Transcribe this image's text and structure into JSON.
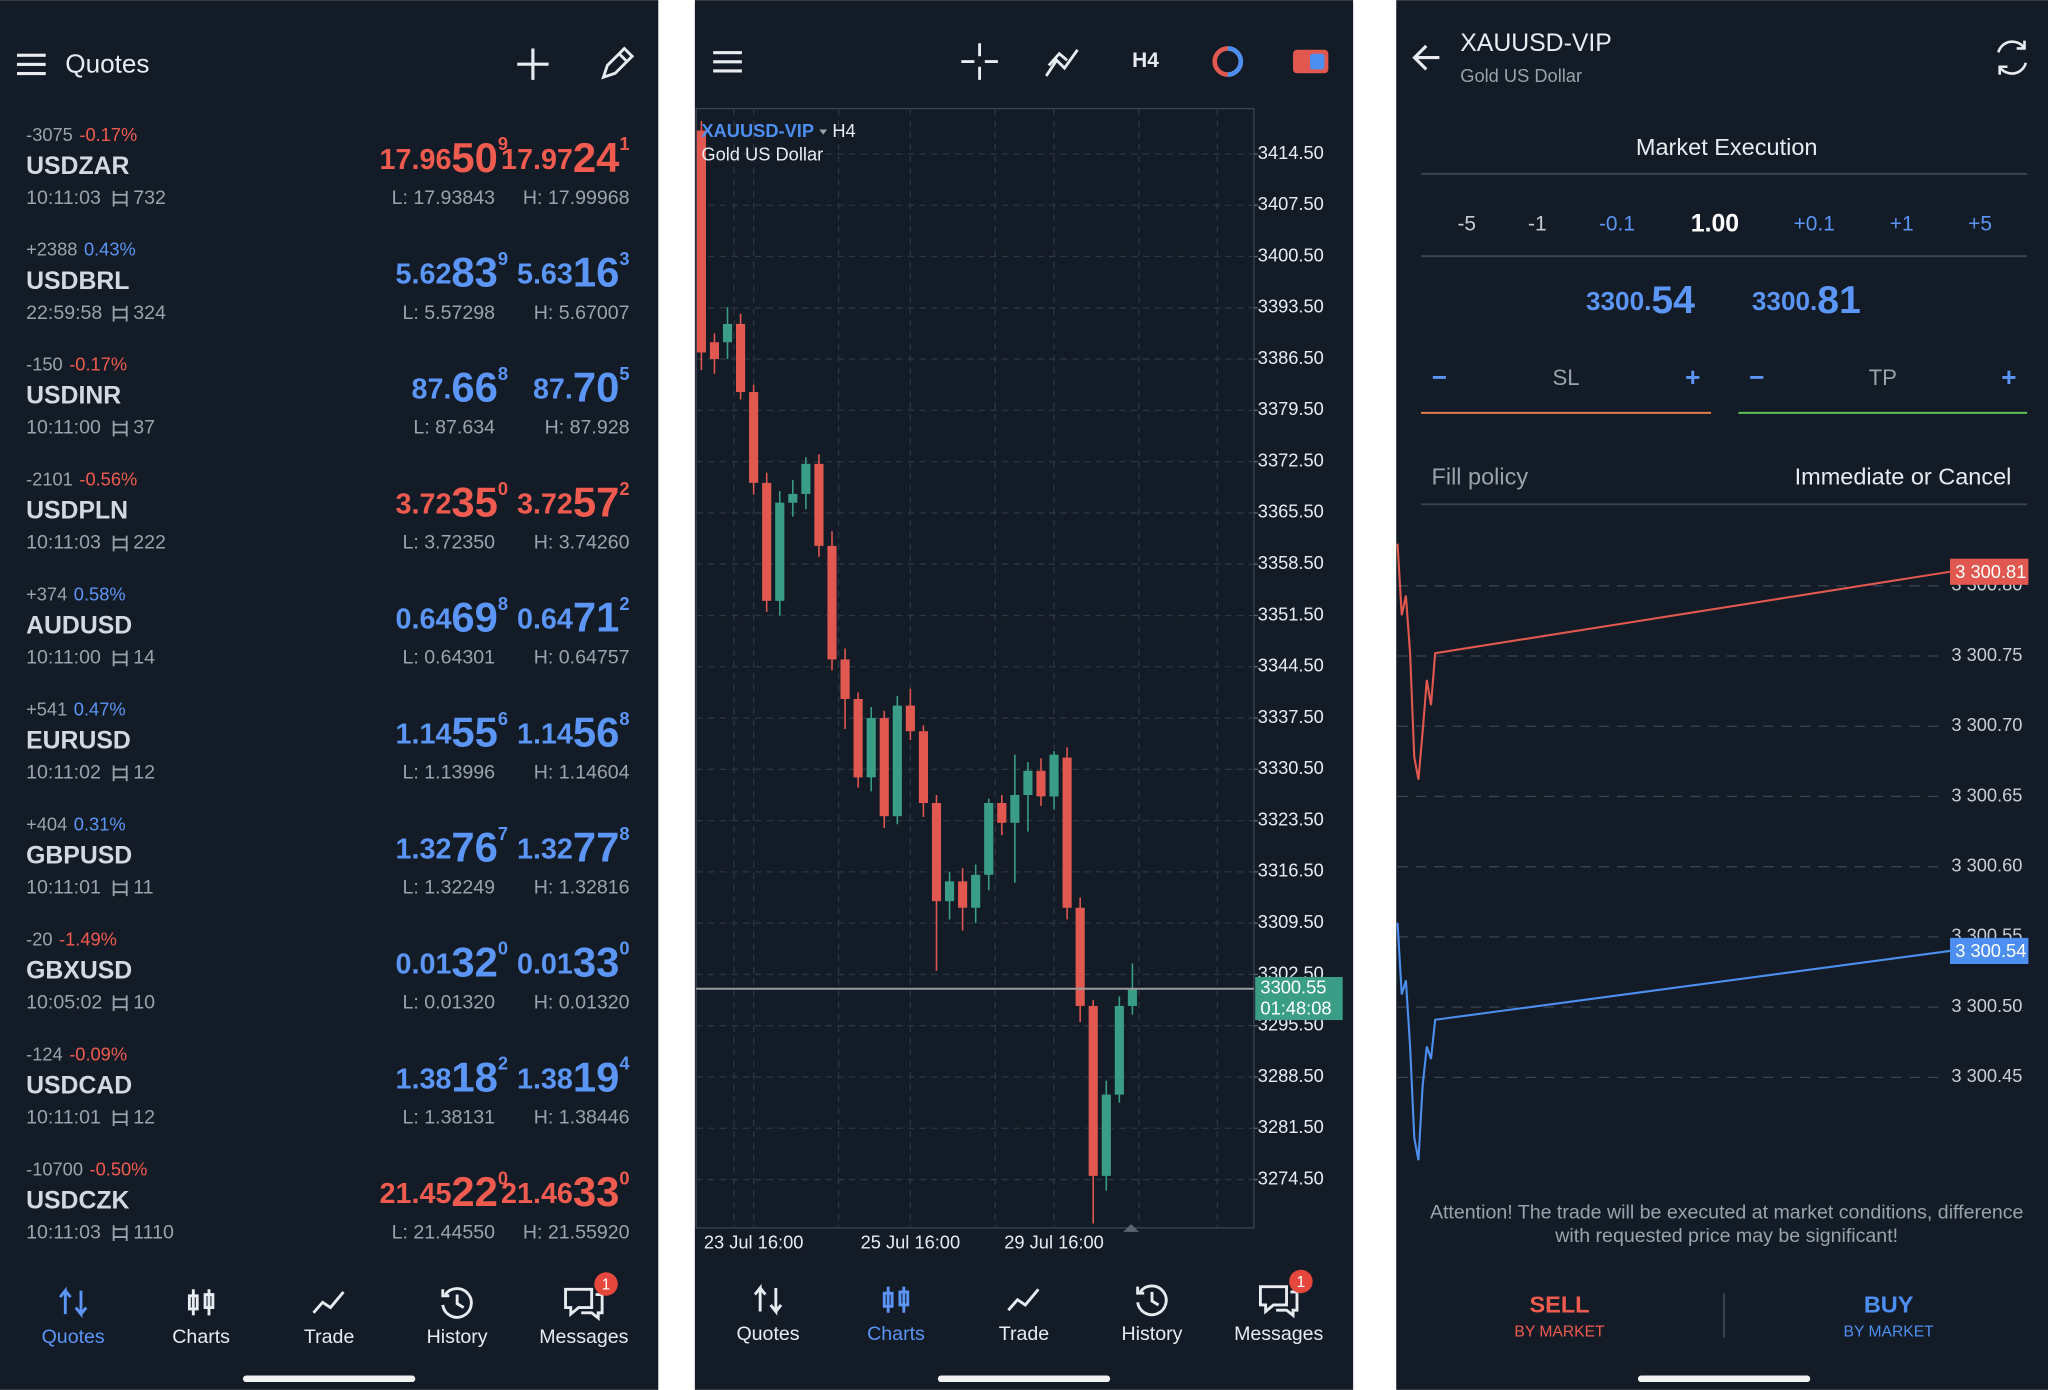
{
  "quotes_panel": {
    "title": "Quotes",
    "quotes": [
      {
        "change": "-3075",
        "pct": "-0.17%",
        "symbol": "USDZAR",
        "time": "10:11:03",
        "spread": "732",
        "bid": [
          "17.96",
          "50",
          "9"
        ],
        "ask": [
          "17.97",
          "24",
          "1"
        ],
        "low": "L: 17.93843",
        "high": "H: 17.99968",
        "color": "#ef5b4f"
      },
      {
        "change": "+2388",
        "pct": "0.43%",
        "symbol": "USDBRL",
        "time": "22:59:58",
        "spread": "324",
        "bid": [
          "5.62",
          "83",
          "9"
        ],
        "ask": [
          "5.63",
          "16",
          "3"
        ],
        "low": "L: 5.57298",
        "high": "H: 5.67007",
        "color": "#5b95f5"
      },
      {
        "change": "-150",
        "pct": "-0.17%",
        "symbol": "USDINR",
        "time": "10:11:00",
        "spread": "37",
        "bid": [
          "87.",
          "66",
          "8"
        ],
        "ask": [
          "87.",
          "70",
          "5"
        ],
        "low": "L: 87.634",
        "high": "H: 87.928",
        "color": "#5b95f5"
      },
      {
        "change": "-2101",
        "pct": "-0.56%",
        "symbol": "USDPLN",
        "time": "10:11:03",
        "spread": "222",
        "bid": [
          "3.72",
          "35",
          "0"
        ],
        "ask": [
          "3.72",
          "57",
          "2"
        ],
        "low": "L: 3.72350",
        "high": "H: 3.74260",
        "color": "#ef5b4f"
      },
      {
        "change": "+374",
        "pct": "0.58%",
        "symbol": "AUDUSD",
        "time": "10:11:00",
        "spread": "14",
        "bid": [
          "0.64",
          "69",
          "8"
        ],
        "ask": [
          "0.64",
          "71",
          "2"
        ],
        "low": "L: 0.64301",
        "high": "H: 0.64757",
        "color": "#5b95f5"
      },
      {
        "change": "+541",
        "pct": "0.47%",
        "symbol": "EURUSD",
        "time": "10:11:02",
        "spread": "12",
        "bid": [
          "1.14",
          "55",
          "6"
        ],
        "ask": [
          "1.14",
          "56",
          "8"
        ],
        "low": "L: 1.13996",
        "high": "H: 1.14604",
        "color": "#5b95f5"
      },
      {
        "change": "+404",
        "pct": "0.31%",
        "symbol": "GBPUSD",
        "time": "10:11:01",
        "spread": "11",
        "bid": [
          "1.32",
          "76",
          "7"
        ],
        "ask": [
          "1.32",
          "77",
          "8"
        ],
        "low": "L: 1.32249",
        "high": "H: 1.32816",
        "color": "#5b95f5"
      },
      {
        "change": "-20",
        "pct": "-1.49%",
        "symbol": "GBXUSD",
        "time": "10:05:02",
        "spread": "10",
        "bid": [
          "0.01",
          "32",
          "0"
        ],
        "ask": [
          "0.01",
          "33",
          "0"
        ],
        "low": "L: 0.01320",
        "high": "H: 0.01320",
        "color": "#5b95f5"
      },
      {
        "change": "-124",
        "pct": "-0.09%",
        "symbol": "USDCAD",
        "time": "10:11:01",
        "spread": "12",
        "bid": [
          "1.38",
          "18",
          "2"
        ],
        "ask": [
          "1.38",
          "19",
          "4"
        ],
        "low": "L: 1.38131",
        "high": "H: 1.38446",
        "color": "#5b95f5"
      },
      {
        "change": "-10700",
        "pct": "-0.50%",
        "symbol": "USDCZK",
        "time": "10:11:03",
        "spread": "1110",
        "bid": [
          "21.45",
          "22",
          "0"
        ],
        "ask": [
          "21.46",
          "33",
          "0"
        ],
        "low": "L: 21.44550",
        "high": "H: 21.55920",
        "color": "#ef5b4f"
      }
    ],
    "active_tab": 0
  },
  "chart_panel": {
    "timeframe": "H4",
    "active_tab": 1
  },
  "tabs": [
    "Quotes",
    "Charts",
    "Trade",
    "History",
    "Messages"
  ],
  "messages_badge": 1,
  "chart_data": [
    {
      "type": "candlestick",
      "title": "XAUUSD-VIP",
      "timeframe": "H4",
      "subtitle": "Gold US Dollar",
      "categories": [
        null,
        null,
        null,
        null,
        "23 Jul 16:00",
        null,
        null,
        null,
        null,
        null,
        null,
        null,
        null,
        null,
        null,
        null,
        "25 Jul 16:00",
        null,
        null,
        null,
        null,
        null,
        null,
        null,
        null,
        null,
        null,
        "29 Jul 16:00",
        null,
        null,
        null,
        null,
        null,
        null
      ],
      "candles": [
        {
          "open": 3417.7,
          "high": 3419.0,
          "low": 3385.0,
          "close": 3387.4
        },
        {
          "open": 3388.8,
          "high": 3390.0,
          "low": 3384.5,
          "close": 3386.5
        },
        {
          "open": 3388.8,
          "high": 3393.6,
          "low": 3386.5,
          "close": 3391.3
        },
        {
          "open": 3391.3,
          "high": 3392.7,
          "low": 3381.0,
          "close": 3382.0
        },
        {
          "open": 3382.0,
          "high": 3383.0,
          "low": 3368.0,
          "close": 3369.6
        },
        {
          "open": 3369.6,
          "high": 3371.0,
          "low": 3352.0,
          "close": 3353.5
        },
        {
          "open": 3353.5,
          "high": 3368.5,
          "low": 3351.5,
          "close": 3366.9
        },
        {
          "open": 3366.9,
          "high": 3370.0,
          "low": 3365.0,
          "close": 3368.1
        },
        {
          "open": 3368.1,
          "high": 3373.1,
          "low": 3366.0,
          "close": 3372.2
        },
        {
          "open": 3372.2,
          "high": 3373.5,
          "low": 3359.5,
          "close": 3361.0
        },
        {
          "open": 3361.0,
          "high": 3363.0,
          "low": 3344.0,
          "close": 3345.5
        },
        {
          "open": 3345.5,
          "high": 3347.0,
          "low": 3336.0,
          "close": 3340.1
        },
        {
          "open": 3340.1,
          "high": 3341.0,
          "low": 3328.0,
          "close": 3329.4
        },
        {
          "open": 3329.4,
          "high": 3339.0,
          "low": 3327.5,
          "close": 3337.5
        },
        {
          "open": 3337.5,
          "high": 3338.5,
          "low": 3322.5,
          "close": 3324.1
        },
        {
          "open": 3324.1,
          "high": 3340.5,
          "low": 3323.0,
          "close": 3339.2
        },
        {
          "open": 3339.2,
          "high": 3341.5,
          "low": 3334.5,
          "close": 3335.7
        },
        {
          "open": 3335.7,
          "high": 3336.5,
          "low": 3324.0,
          "close": 3325.9
        },
        {
          "open": 3325.9,
          "high": 3327.0,
          "low": 3303.0,
          "close": 3312.5
        },
        {
          "open": 3312.5,
          "high": 3316.5,
          "low": 3310.0,
          "close": 3315.2
        },
        {
          "open": 3315.2,
          "high": 3317.0,
          "low": 3308.5,
          "close": 3311.6
        },
        {
          "open": 3311.6,
          "high": 3317.5,
          "low": 3309.5,
          "close": 3316.1
        },
        {
          "open": 3316.1,
          "high": 3326.5,
          "low": 3314.0,
          "close": 3325.9
        },
        {
          "open": 3325.9,
          "high": 3327.0,
          "low": 3321.5,
          "close": 3323.2
        },
        {
          "open": 3323.2,
          "high": 3332.5,
          "low": 3315.0,
          "close": 3327.0
        },
        {
          "open": 3327.0,
          "high": 3331.5,
          "low": 3322.0,
          "close": 3330.3
        },
        {
          "open": 3330.3,
          "high": 3332.0,
          "low": 3325.5,
          "close": 3326.8
        },
        {
          "open": 3326.8,
          "high": 3333.0,
          "low": 3325.0,
          "close": 3332.5
        },
        {
          "open": 3332.1,
          "high": 3333.5,
          "low": 3310.0,
          "close": 3311.6
        },
        {
          "open": 3311.6,
          "high": 3313.0,
          "low": 3296.0,
          "close": 3298.2
        },
        {
          "open": 3298.2,
          "high": 3299.0,
          "low": 3268.5,
          "close": 3275.0
        },
        {
          "open": 3275.0,
          "high": 3288.0,
          "low": 3273.0,
          "close": 3286.1
        },
        {
          "open": 3286.1,
          "high": 3299.5,
          "low": 3285.0,
          "close": 3298.2
        },
        {
          "open": 3298.2,
          "high": 3304.0,
          "low": 3297.0,
          "close": 3300.5
        }
      ],
      "colors": {
        "up": "#3a9e86",
        "down": "#e0584f"
      },
      "last_price": 3300.55,
      "countdown": "01:48:08",
      "ylim": [
        3267.9,
        3420.7
      ],
      "yticks": [
        {
          "value": 3414.5,
          "label": "3414.50"
        },
        {
          "value": 3407.5,
          "label": "3407.50"
        },
        {
          "value": 3400.5,
          "label": "3400.50"
        },
        {
          "value": 3393.5,
          "label": "3393.50"
        },
        {
          "value": 3386.5,
          "label": "3386.50"
        },
        {
          "value": 3379.5,
          "label": "3379.50"
        },
        {
          "value": 3372.5,
          "label": "3372.50"
        },
        {
          "value": 3365.5,
          "label": "3365.50"
        },
        {
          "value": 3358.5,
          "label": "3358.50"
        },
        {
          "value": 3351.5,
          "label": "3351.50"
        },
        {
          "value": 3344.5,
          "label": "3344.50"
        },
        {
          "value": 3337.5,
          "label": "3337.50"
        },
        {
          "value": 3330.5,
          "label": "3330.50"
        },
        {
          "value": 3323.5,
          "label": "3323.50"
        },
        {
          "value": 3316.5,
          "label": "3316.50"
        },
        {
          "value": 3309.5,
          "label": "3309.50"
        },
        {
          "value": 3302.5,
          "label": "3302.50"
        },
        {
          "value": 3295.5,
          "label": "3295.50"
        },
        {
          "value": 3288.5,
          "label": "3288.50"
        },
        {
          "value": 3281.5,
          "label": "3281.50"
        },
        {
          "value": 3274.5,
          "label": "3274.50"
        }
      ],
      "grid": true
    },
    {
      "type": "line",
      "series": [
        {
          "color": "#e0584f",
          "values": [
            3300.83,
            3300.779,
            3300.793,
            3300.752,
            3300.678,
            3300.662,
            3300.696,
            3300.733,
            3300.715,
            3300.752,
            3300.81
          ],
          "last_label": "3 300.81"
        },
        {
          "color": "#4d8ff0",
          "values": [
            3300.56,
            3300.509,
            3300.519,
            3300.472,
            3300.407,
            3300.391,
            3300.444,
            3300.472,
            3300.463,
            3300.491,
            3300.54
          ],
          "last_label": "3 300.54"
        }
      ],
      "ylim": [
        3300.38,
        3300.845
      ],
      "yticks": [
        {
          "value": 3300.8,
          "label": "3 300.80"
        },
        {
          "value": 3300.75,
          "label": "3 300.75"
        },
        {
          "value": 3300.7,
          "label": "3 300.70"
        },
        {
          "value": 3300.65,
          "label": "3 300.65"
        },
        {
          "value": 3300.6,
          "label": "3 300.60"
        },
        {
          "value": 3300.55,
          "label": "3 300.55"
        },
        {
          "value": 3300.5,
          "label": "3 300.50"
        },
        {
          "value": 3300.45,
          "label": "3 300.45"
        }
      ],
      "grid": true
    }
  ],
  "order_panel": {
    "symbol": "XAUUSD-VIP",
    "description": "Gold US Dollar",
    "execution": "Market Execution",
    "volume_steps": [
      "-5",
      "-1",
      "-0.1",
      "1.00",
      "+0.1",
      "+1",
      "+5"
    ],
    "bid": [
      "3300.",
      "54"
    ],
    "ask": [
      "3300.",
      "81"
    ],
    "sl": "SL",
    "tp": "TP",
    "minus": "−",
    "plus": "+",
    "fill_policy_label": "Fill policy",
    "fill_policy": "Immediate or Cancel",
    "attention": [
      "Attention! The trade will be executed at market conditions, difference",
      "with requested price may be significant!"
    ],
    "sell": "SELL",
    "sell_sub": "BY MARKET",
    "buy": "BUY",
    "buy_sub": "BY MARKET"
  }
}
